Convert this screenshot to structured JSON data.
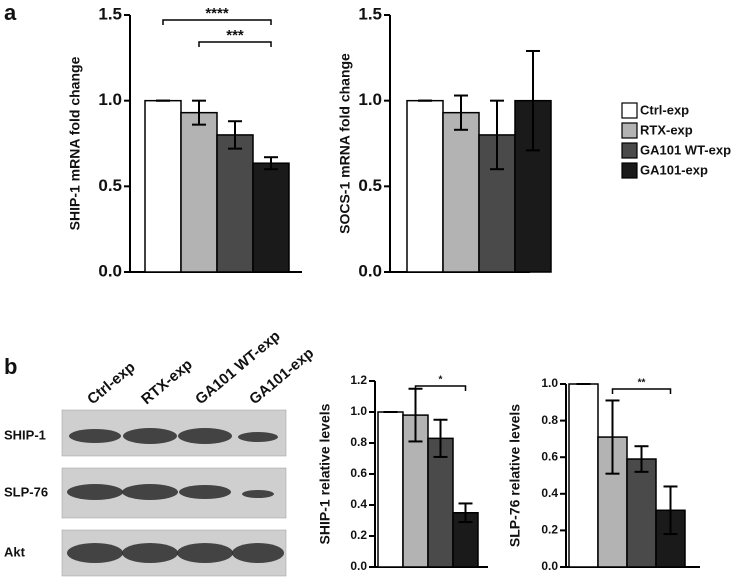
{
  "panel_labels": [
    "a",
    "b"
  ],
  "legend": [
    {
      "name": "Ctrl-exp",
      "color": "#ffffff"
    },
    {
      "name": "RTX-exp",
      "color": "#b3b3b3"
    },
    {
      "name": "GA101 WT-exp",
      "color": "#4a4a4a"
    },
    {
      "name": "GA101-exp",
      "color": "#1a1a1a"
    }
  ],
  "blot": {
    "lanes": [
      "Ctrl-exp",
      "RTX-exp",
      "GA101 WT-exp",
      "GA101-exp"
    ],
    "rows": [
      "SHIP-1",
      "SLP-76",
      "Akt"
    ]
  },
  "chart_data": [
    {
      "type": "bar",
      "ylabel": "SHIP-1 mRNA  fold change",
      "categories": [
        null,
        null,
        null,
        null
      ],
      "values": [
        1.0,
        0.93,
        0.8,
        0.635
      ],
      "errors": [
        0,
        0.07,
        0.08,
        0.035
      ],
      "ylim": [
        0,
        1.5
      ],
      "yticks": [
        {
          "value": 0,
          "label": "0.0"
        },
        {
          "value": 0.5,
          "label": "0.5"
        },
        {
          "value": 1,
          "label": "1.0"
        },
        {
          "value": 1.5,
          "label": "1.5"
        }
      ],
      "annotations": [
        {
          "text": "****",
          "from": 0,
          "to": 3
        },
        {
          "text": "***",
          "from": 1,
          "to": 3
        }
      ]
    },
    {
      "type": "bar",
      "ylabel": "SOCS-1 mRNA  fold change",
      "categories": [
        null,
        null,
        null,
        null
      ],
      "values": [
        1.0,
        0.93,
        0.8,
        1.0
      ],
      "errors": [
        0,
        0.1,
        0.2,
        0.29
      ],
      "ylim": [
        0,
        1.5
      ],
      "yticks": [
        {
          "value": 0,
          "label": "0.0"
        },
        {
          "value": 0.5,
          "label": "0.5"
        },
        {
          "value": 1,
          "label": "1.0"
        },
        {
          "value": 1.5,
          "label": "1.5"
        }
      ],
      "annotations": []
    },
    {
      "type": "bar",
      "ylabel": "SHIP-1 relative levels",
      "categories": [
        null,
        null,
        null,
        null
      ],
      "values": [
        1.0,
        0.98,
        0.83,
        0.35
      ],
      "errors": [
        0,
        0.17,
        0.12,
        0.06
      ],
      "ylim": [
        0,
        1.2
      ],
      "yticks": [
        {
          "value": 0,
          "label": "0.0"
        },
        {
          "value": 0.2,
          "label": "0.2"
        },
        {
          "value": 0.4,
          "label": "0.4"
        },
        {
          "value": 0.6,
          "label": "0.6"
        },
        {
          "value": 0.8,
          "label": "0.8"
        },
        {
          "value": 1,
          "label": "1.0"
        },
        {
          "value": 1.2,
          "label": "1.2"
        }
      ],
      "annotations": [
        {
          "text": "*",
          "from": 1,
          "to": 3
        }
      ]
    },
    {
      "type": "bar",
      "ylabel": "SLP-76  relative levels",
      "categories": [
        null,
        null,
        null,
        null
      ],
      "values": [
        1.0,
        0.71,
        0.59,
        0.31
      ],
      "errors": [
        0,
        0.2,
        0.07,
        0.13
      ],
      "ylim": [
        0,
        1
      ],
      "yticks": [
        {
          "value": 0,
          "label": "0.0"
        },
        {
          "value": 0.2,
          "label": "0.2"
        },
        {
          "value": 0.4,
          "label": "0.4"
        },
        {
          "value": 0.6,
          "label": "0.6"
        },
        {
          "value": 0.8,
          "label": "0.8"
        },
        {
          "value": 1,
          "label": "1.0"
        }
      ],
      "annotations": [
        {
          "text": "**",
          "from": 1,
          "to": 3
        }
      ]
    }
  ]
}
